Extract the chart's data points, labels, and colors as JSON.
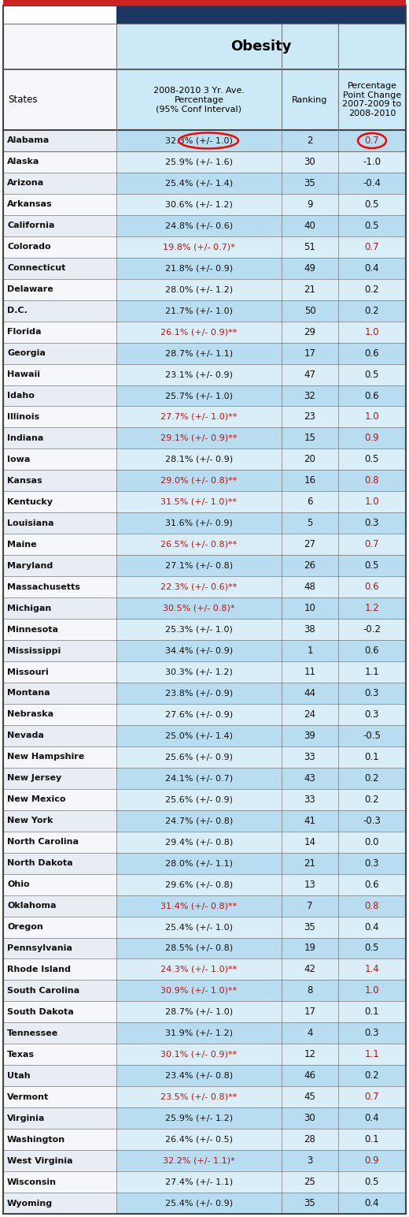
{
  "title": "Obesity",
  "col_headers": [
    "States",
    "2008-2010 3 Yr. Ave.\nPercentage\n(95% Conf Interval)",
    "Ranking",
    "Percentage\nPoint Change\n2007-2009 to\n2008-2010"
  ],
  "rows": [
    [
      "Alabama",
      "32.3% (+/- 1.0)",
      "2",
      "0.7",
      false,
      true
    ],
    [
      "Alaska",
      "25.9% (+/- 1.6)",
      "30",
      "-1.0",
      false,
      false
    ],
    [
      "Arizona",
      "25.4% (+/- 1.4)",
      "35",
      "-0.4",
      false,
      false
    ],
    [
      "Arkansas",
      "30.6% (+/- 1.2)",
      "9",
      "0.5",
      false,
      false
    ],
    [
      "California",
      "24.8% (+/- 0.6)",
      "40",
      "0.5",
      false,
      false
    ],
    [
      "Colorado",
      "19.8% (+/- 0.7)*",
      "51",
      "0.7",
      true,
      true
    ],
    [
      "Connecticut",
      "21.8% (+/- 0.9)",
      "49",
      "0.4",
      false,
      false
    ],
    [
      "Delaware",
      "28.0% (+/- 1.2)",
      "21",
      "0.2",
      false,
      false
    ],
    [
      "D.C.",
      "21.7% (+/- 1.0)",
      "50",
      "0.2",
      false,
      false
    ],
    [
      "Florida",
      "26.1% (+/- 0.9)**",
      "29",
      "1.0",
      true,
      true
    ],
    [
      "Georgia",
      "28.7% (+/- 1.1)",
      "17",
      "0.6",
      false,
      false
    ],
    [
      "Hawaii",
      "23.1% (+/- 0.9)",
      "47",
      "0.5",
      false,
      false
    ],
    [
      "Idaho",
      "25.7% (+/- 1.0)",
      "32",
      "0.6",
      false,
      false
    ],
    [
      "Illinois",
      "27.7% (+/- 1.0)**",
      "23",
      "1.0",
      true,
      true
    ],
    [
      "Indiana",
      "29.1% (+/- 0.9)**",
      "15",
      "0.9",
      true,
      true
    ],
    [
      "Iowa",
      "28.1% (+/- 0.9)",
      "20",
      "0.5",
      false,
      false
    ],
    [
      "Kansas",
      "29.0% (+/- 0.8)**",
      "16",
      "0.8",
      true,
      true
    ],
    [
      "Kentucky",
      "31.5% (+/- 1.0)**",
      "6",
      "1.0",
      true,
      true
    ],
    [
      "Louisiana",
      "31.6% (+/- 0.9)",
      "5",
      "0.3",
      false,
      false
    ],
    [
      "Maine",
      "26.5% (+/- 0.8)**",
      "27",
      "0.7",
      true,
      true
    ],
    [
      "Maryland",
      "27.1% (+/- 0.8)",
      "26",
      "0.5",
      false,
      false
    ],
    [
      "Massachusetts",
      "22.3% (+/- 0.6)**",
      "48",
      "0.6",
      true,
      true
    ],
    [
      "Michigan",
      "30.5% (+/- 0.8)*",
      "10",
      "1.2",
      true,
      true
    ],
    [
      "Minnesota",
      "25.3% (+/- 1.0)",
      "38",
      "-0.2",
      false,
      false
    ],
    [
      "Mississippi",
      "34.4% (+/- 0.9)",
      "1",
      "0.6",
      false,
      false
    ],
    [
      "Missouri",
      "30.3% (+/- 1.2)",
      "11",
      "1.1",
      false,
      false
    ],
    [
      "Montana",
      "23.8% (+/- 0.9)",
      "44",
      "0.3",
      false,
      false
    ],
    [
      "Nebraska",
      "27.6% (+/- 0.9)",
      "24",
      "0.3",
      false,
      false
    ],
    [
      "Nevada",
      "25.0% (+/- 1.4)",
      "39",
      "-0.5",
      false,
      false
    ],
    [
      "New Hampshire",
      "25.6% (+/- 0.9)",
      "33",
      "0.1",
      false,
      false
    ],
    [
      "New Jersey",
      "24.1% (+/- 0.7)",
      "43",
      "0.2",
      false,
      false
    ],
    [
      "New Mexico",
      "25.6% (+/- 0.9)",
      "33",
      "0.2",
      false,
      false
    ],
    [
      "New York",
      "24.7% (+/- 0.8)",
      "41",
      "-0.3",
      false,
      false
    ],
    [
      "North Carolina",
      "29.4% (+/- 0.8)",
      "14",
      "0.0",
      false,
      false
    ],
    [
      "North Dakota",
      "28.0% (+/- 1.1)",
      "21",
      "0.3",
      false,
      false
    ],
    [
      "Ohio",
      "29.6% (+/- 0.8)",
      "13",
      "0.6",
      false,
      false
    ],
    [
      "Oklahoma",
      "31.4% (+/- 0.8)**",
      "7",
      "0.8",
      true,
      true
    ],
    [
      "Oregon",
      "25.4% (+/- 1.0)",
      "35",
      "0.4",
      false,
      false
    ],
    [
      "Pennsylvania",
      "28.5% (+/- 0.8)",
      "19",
      "0.5",
      false,
      false
    ],
    [
      "Rhode Island",
      "24.3% (+/- 1.0)**",
      "42",
      "1.4",
      true,
      true
    ],
    [
      "South Carolina",
      "30.9% (+/- 1.0)**",
      "8",
      "1.0",
      true,
      true
    ],
    [
      "South Dakota",
      "28.7% (+/- 1.0)",
      "17",
      "0.1",
      false,
      false
    ],
    [
      "Tennessee",
      "31.9% (+/- 1.2)",
      "4",
      "0.3",
      false,
      false
    ],
    [
      "Texas",
      "30.1% (+/- 0.9)**",
      "12",
      "1.1",
      true,
      true
    ],
    [
      "Utah",
      "23.4% (+/- 0.8)",
      "46",
      "0.2",
      false,
      false
    ],
    [
      "Vermont",
      "23.5% (+/- 0.8)**",
      "45",
      "0.7",
      true,
      true
    ],
    [
      "Virginia",
      "25.9% (+/- 1.2)",
      "30",
      "0.4",
      false,
      false
    ],
    [
      "Washington",
      "26.4% (+/- 0.5)",
      "28",
      "0.1",
      false,
      false
    ],
    [
      "West Virginia",
      "32.2% (+/- 1.1)*",
      "3",
      "0.9",
      true,
      true
    ],
    [
      "Wisconsin",
      "27.4% (+/- 1.1)",
      "25",
      "0.5",
      false,
      false
    ],
    [
      "Wyoming",
      "25.4% (+/- 0.9)",
      "35",
      "0.4",
      false,
      false
    ]
  ],
  "red_color": "#bb1111",
  "black_color": "#111111",
  "dark_blue": "#1c3664",
  "light_blue1": "#cce9f7",
  "light_blue2": "#a8d8f0",
  "state_bg_even": "#e8edf4",
  "state_bg_odd": "#f5f7fb",
  "data_bg_even": "#b8ddf0",
  "data_bg_odd": "#daeef8",
  "border_dark": "#444444",
  "border_mid": "#777777",
  "top_red": "#cc2222"
}
